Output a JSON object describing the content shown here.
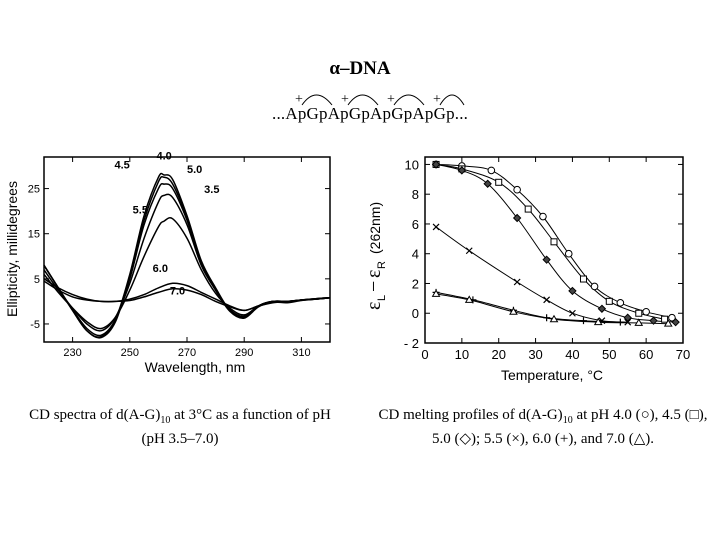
{
  "header": {
    "title": "α–DNA",
    "sequence": "...ApGpApGpApGpApGp...",
    "charge_mark": "+"
  },
  "chart_data": [
    {
      "type": "line",
      "xlabel": "Wavelength, nm",
      "ylabel": "Ellipticity, millidegrees",
      "xlim": [
        220,
        320
      ],
      "ylim": [
        -9,
        32
      ],
      "xticks": [
        230,
        250,
        270,
        290,
        310
      ],
      "yticks": [
        25,
        15,
        5,
        -5
      ],
      "series": [
        {
          "name": "4.0",
          "x": [
            220,
            225,
            230,
            235,
            240,
            245,
            250,
            255,
            260,
            262,
            265,
            270,
            275,
            280,
            285,
            290,
            295,
            300,
            305,
            310,
            315,
            320
          ],
          "y": [
            8,
            3,
            -2,
            -6.5,
            -7.8,
            -4,
            6,
            19,
            27.5,
            28,
            27,
            19,
            9,
            3,
            -2,
            -3.5,
            -1,
            0,
            -0.2,
            0.3,
            0.6,
            0.8
          ]
        },
        {
          "name": "4.5",
          "x": [
            220,
            225,
            230,
            235,
            240,
            245,
            250,
            255,
            260,
            262,
            265,
            270,
            275,
            280,
            285,
            290,
            295,
            300,
            305,
            310,
            315,
            320
          ],
          "y": [
            8,
            3,
            -2,
            -6.5,
            -8,
            -4.5,
            5.5,
            18,
            26.5,
            27.5,
            26,
            18.5,
            8.5,
            2.5,
            -2.2,
            -3.7,
            -1.2,
            -0.2,
            -0.3,
            0.2,
            0.5,
            0.8
          ]
        },
        {
          "name": "5.0",
          "x": [
            220,
            225,
            230,
            235,
            240,
            245,
            250,
            255,
            260,
            262,
            265,
            270,
            275,
            280,
            285,
            290,
            295,
            300,
            305,
            310,
            315,
            320
          ],
          "y": [
            8,
            3,
            -1.8,
            -6,
            -7.5,
            -4,
            5,
            17,
            25,
            26,
            25,
            18,
            8.5,
            2.5,
            -2,
            -3.5,
            -1,
            0,
            0,
            0.3,
            0.6,
            0.8
          ]
        },
        {
          "name": "3.5",
          "x": [
            220,
            225,
            230,
            235,
            240,
            245,
            250,
            255,
            260,
            262,
            265,
            270,
            275,
            280,
            285,
            290,
            295,
            300,
            305,
            310,
            315,
            320
          ],
          "y": [
            7,
            2.5,
            -1.5,
            -5,
            -6.5,
            -3.5,
            4,
            14,
            22,
            23.5,
            23,
            17,
            8,
            2.5,
            -1.8,
            -3.3,
            -1,
            0,
            0,
            0.3,
            0.6,
            0.8
          ]
        },
        {
          "name": "5.5",
          "x": [
            220,
            225,
            230,
            235,
            240,
            245,
            250,
            255,
            260,
            262,
            265,
            270,
            275,
            280,
            285,
            290,
            295,
            300,
            305,
            310,
            315,
            320
          ],
          "y": [
            6,
            2,
            -1.5,
            -4.5,
            -6,
            -3.5,
            2.5,
            10,
            16.5,
            17.8,
            18.3,
            14,
            7,
            1.8,
            -1.5,
            -3,
            -1,
            0,
            0,
            0.3,
            0.5,
            0.8
          ]
        },
        {
          "name": "6.0",
          "x": [
            220,
            225,
            230,
            235,
            240,
            245,
            250,
            255,
            260,
            265,
            270,
            275,
            280,
            285,
            290,
            295,
            300,
            305,
            310,
            315,
            320
          ],
          "y": [
            5,
            3,
            1.5,
            0.5,
            0,
            0,
            0.5,
            1.5,
            3,
            4,
            3.5,
            2,
            0.5,
            -1,
            -2,
            -1,
            -0.2,
            0,
            0.3,
            0.5,
            0.8
          ]
        },
        {
          "name": "7.0",
          "x": [
            220,
            225,
            230,
            235,
            240,
            245,
            250,
            255,
            260,
            265,
            270,
            275,
            280,
            285,
            290,
            295,
            300,
            305,
            310,
            315,
            320
          ],
          "y": [
            4.5,
            2.5,
            1,
            0.3,
            0,
            0,
            0.2,
            1,
            2,
            2.8,
            2.5,
            1.5,
            0,
            -1.2,
            -2,
            -1,
            -0.3,
            0,
            0.3,
            0.5,
            0.8
          ]
        }
      ]
    },
    {
      "type": "scatter",
      "xlabel": "Temperature, °C",
      "ylabel_main": "ε",
      "ylabel_sub1": "L",
      "ylabel_sub2": "R",
      "ylabel_tail": "(262nm)",
      "xlim": [
        0,
        70
      ],
      "ylim": [
        -2,
        10.5
      ],
      "xticks": [
        0,
        10,
        20,
        30,
        40,
        50,
        60,
        70
      ],
      "yticks": [
        10,
        8,
        6,
        4,
        2,
        0,
        -2
      ],
      "series": [
        {
          "name": "pH 4.0",
          "marker": "circle",
          "x": [
            3,
            10,
            18,
            25,
            32,
            39,
            46,
            53,
            60,
            67
          ],
          "y": [
            10,
            9.9,
            9.6,
            8.3,
            6.5,
            4,
            1.8,
            0.7,
            0.1,
            -0.3
          ]
        },
        {
          "name": "pH 4.5",
          "marker": "square",
          "x": [
            3,
            10,
            20,
            28,
            35,
            43,
            50,
            58,
            65
          ],
          "y": [
            10,
            9.7,
            8.8,
            7,
            4.8,
            2.3,
            0.8,
            0,
            -0.4
          ]
        },
        {
          "name": "pH 5.0",
          "marker": "diamond",
          "x": [
            3,
            10,
            17,
            25,
            33,
            40,
            48,
            55,
            62,
            68
          ],
          "y": [
            10,
            9.6,
            8.7,
            6.4,
            3.6,
            1.5,
            0.3,
            -0.3,
            -0.5,
            -0.6
          ]
        },
        {
          "name": "pH 5.5",
          "marker": "x",
          "x": [
            3,
            12,
            25,
            33,
            40,
            48,
            55
          ],
          "y": [
            5.8,
            4.2,
            2.1,
            0.9,
            0,
            -0.5,
            -0.6
          ]
        },
        {
          "name": "pH 6.0",
          "marker": "plus",
          "x": [
            3,
            13,
            24,
            33,
            43,
            53
          ],
          "y": [
            1.4,
            0.9,
            0.2,
            -0.3,
            -0.5,
            -0.6
          ]
        },
        {
          "name": "pH 7.0",
          "marker": "triangle",
          "x": [
            3,
            12,
            24,
            35,
            47,
            58,
            66
          ],
          "y": [
            1.3,
            0.9,
            0.1,
            -0.4,
            -0.6,
            -0.65,
            -0.7
          ]
        }
      ]
    }
  ],
  "captions": {
    "left_1": "CD spectra of d(A-G)",
    "left_sub": "10",
    "left_2": " at 3°C as a function of pH",
    "left_3": "(pH 3.5–7.0)",
    "right_1": "CD melting profiles of d(A-G)",
    "right_sub": "10",
    "right_2": " at pH 4.0 (○), 4.5 (□),",
    "right_3": "5.0 (◇); 5.5 (×), 6.0 (+), and 7.0 (△)."
  },
  "colors": {
    "ink": "#000000",
    "background": "#ffffff"
  }
}
